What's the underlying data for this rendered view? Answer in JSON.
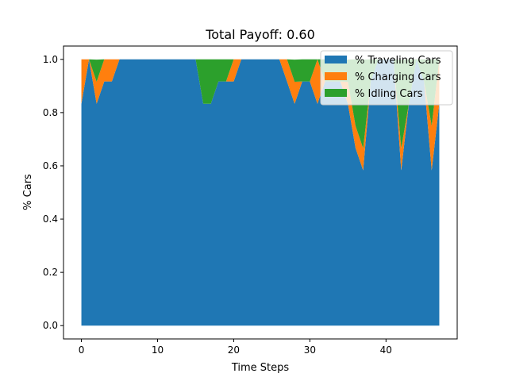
{
  "chart_data": {
    "type": "area",
    "stacked": true,
    "title": "Total Payoff: 0.60",
    "xlabel": "Time Steps",
    "ylabel": "% Cars",
    "xlim": [
      -2.35,
      49.35
    ],
    "ylim": [
      -0.05,
      1.05
    ],
    "xticks": [
      0,
      10,
      20,
      30,
      40
    ],
    "yticks": [
      0.0,
      0.2,
      0.4,
      0.6,
      0.8,
      1.0
    ],
    "ytick_labels": [
      "0.0",
      "0.2",
      "0.4",
      "0.6",
      "0.8",
      "1.0"
    ],
    "grid": false,
    "legend_position": "upper-right",
    "x": [
      0,
      1,
      2,
      3,
      4,
      5,
      6,
      7,
      8,
      9,
      10,
      11,
      12,
      13,
      14,
      15,
      16,
      17,
      18,
      19,
      20,
      21,
      22,
      23,
      24,
      25,
      26,
      27,
      28,
      29,
      30,
      31,
      32,
      33,
      34,
      35,
      36,
      37,
      38,
      39,
      40,
      41,
      42,
      43,
      44,
      45,
      46,
      47
    ],
    "series": [
      {
        "name": "% Traveling Cars",
        "color": "#1f77b4",
        "values": [
          0.833,
          1.0,
          0.833,
          0.917,
          0.917,
          1.0,
          1.0,
          1.0,
          1.0,
          1.0,
          1.0,
          1.0,
          1.0,
          1.0,
          1.0,
          1.0,
          0.833,
          0.833,
          0.917,
          0.917,
          0.917,
          1.0,
          1.0,
          1.0,
          1.0,
          1.0,
          1.0,
          0.917,
          0.833,
          0.917,
          0.917,
          0.833,
          0.917,
          0.917,
          0.917,
          0.833,
          0.667,
          0.583,
          0.917,
          1.0,
          1.0,
          1.0,
          0.583,
          0.833,
          1.0,
          0.917,
          0.583,
          0.833
        ]
      },
      {
        "name": "% Charging Cars",
        "color": "#ff7f0e",
        "values": [
          0.167,
          0.0,
          0.083,
          0.083,
          0.083,
          0.0,
          0.0,
          0.0,
          0.0,
          0.0,
          0.0,
          0.0,
          0.0,
          0.0,
          0.0,
          0.0,
          0.0,
          0.0,
          0.0,
          0.0,
          0.083,
          0.0,
          0.0,
          0.0,
          0.0,
          0.0,
          0.0,
          0.083,
          0.083,
          0.0,
          0.0,
          0.167,
          0.0,
          0.0,
          0.0,
          0.083,
          0.083,
          0.083,
          0.0,
          0.0,
          0.0,
          0.0,
          0.083,
          0.0,
          0.0,
          0.0,
          0.167,
          0.167
        ]
      },
      {
        "name": "% Idling Cars",
        "color": "#2ca02c",
        "values": [
          0.0,
          0.0,
          0.083,
          0.0,
          0.0,
          0.0,
          0.0,
          0.0,
          0.0,
          0.0,
          0.0,
          0.0,
          0.0,
          0.0,
          0.0,
          0.0,
          0.167,
          0.167,
          0.083,
          0.083,
          0.0,
          0.0,
          0.0,
          0.0,
          0.0,
          0.0,
          0.0,
          0.0,
          0.083,
          0.083,
          0.083,
          0.0,
          0.083,
          0.083,
          0.083,
          0.083,
          0.25,
          0.333,
          0.083,
          0.0,
          0.0,
          0.0,
          0.333,
          0.167,
          0.0,
          0.083,
          0.25,
          0.0
        ]
      }
    ]
  }
}
